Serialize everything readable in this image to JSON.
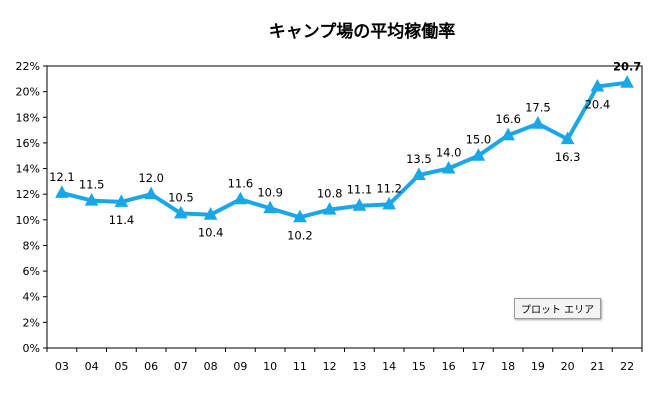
{
  "chart_data": {
    "type": "line",
    "title": "キャンプ場の平均稼働率",
    "categories": [
      "03",
      "04",
      "05",
      "06",
      "07",
      "08",
      "09",
      "10",
      "11",
      "12",
      "13",
      "14",
      "15",
      "16",
      "17",
      "18",
      "19",
      "20",
      "21",
      "22"
    ],
    "series": [
      {
        "values": [
          12.1,
          11.5,
          11.4,
          12.0,
          10.5,
          10.4,
          11.6,
          10.9,
          10.2,
          10.8,
          11.1,
          11.2,
          13.5,
          14.0,
          15.0,
          16.6,
          17.5,
          16.3,
          20.4,
          20.7
        ],
        "labels": [
          "12.1",
          "11.5",
          "11.4",
          "12.0",
          "10.5",
          "10.4",
          "11.6",
          "10.9",
          "10.2",
          "10.8",
          "11.1",
          "11.2",
          "13.5",
          "14.0",
          "15.0",
          "16.6",
          "17.5",
          "16.3",
          "20.4",
          "20.7"
        ],
        "color": "#1aa7e8"
      }
    ],
    "yticks": [
      "0%",
      "2%",
      "4%",
      "6%",
      "8%",
      "10%",
      "12%",
      "14%",
      "16%",
      "18%",
      "20%",
      "22%"
    ],
    "ylim": [
      0,
      22
    ],
    "grid": false,
    "legend": "none"
  },
  "tooltip": {
    "text": "プロット エリア"
  }
}
